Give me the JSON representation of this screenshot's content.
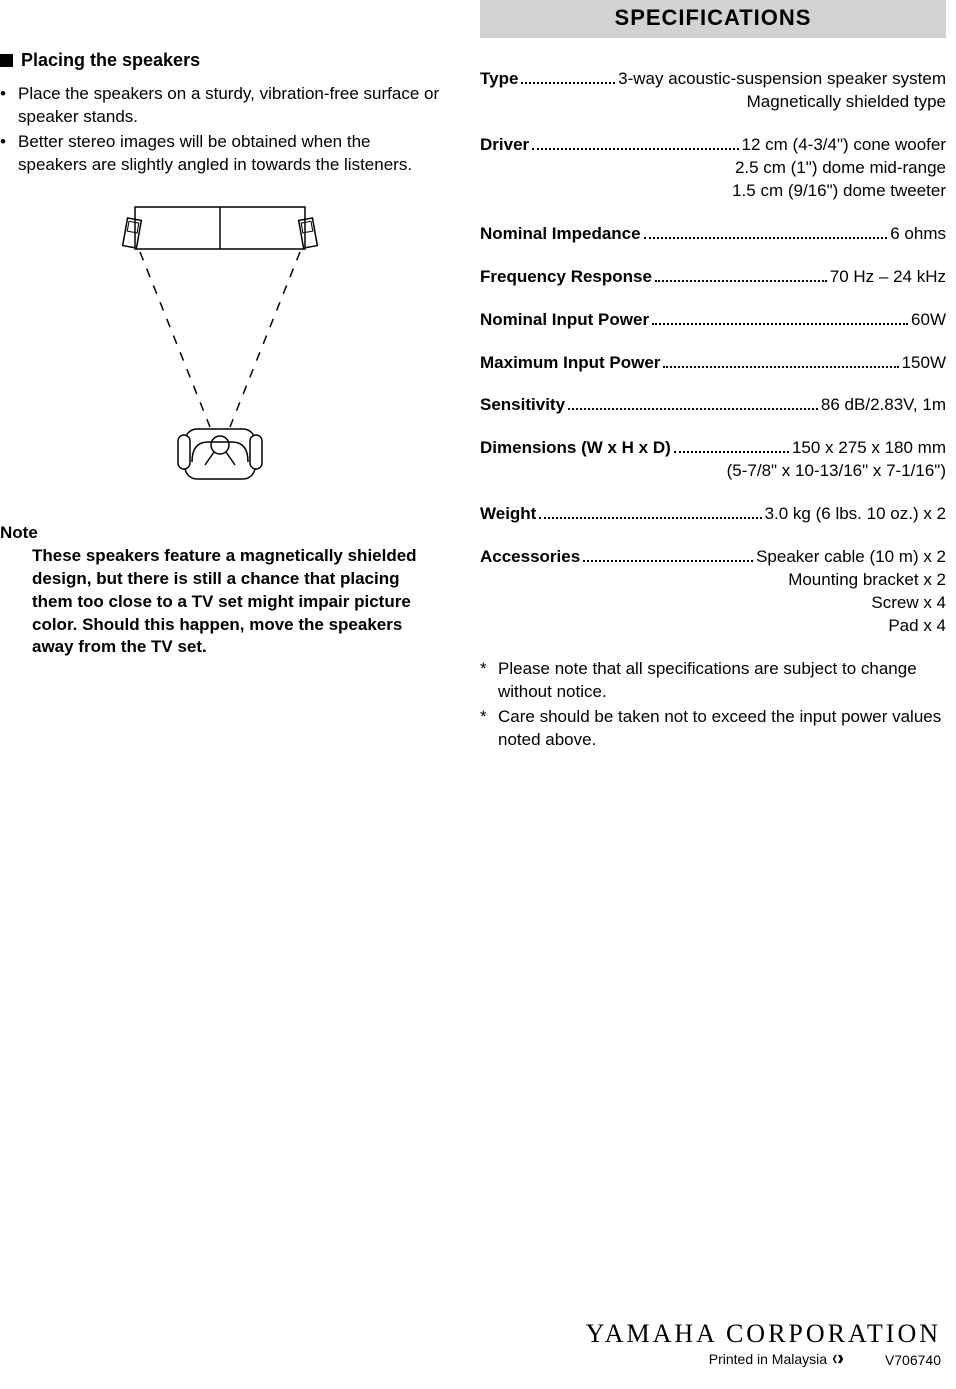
{
  "left": {
    "heading": "Placing the speakers",
    "bullets": [
      "Place the speakers on a sturdy, vibration-free surface or speaker stands.",
      "Better stereo images will be obtained when the speakers are slightly angled in towards the listeners."
    ],
    "note_label": "Note",
    "note_body": "These speakers feature a magnetically shielded design, but there is still a chance that placing them too close to a TV set might impair picture color.  Should this happen, move the speakers away from the TV set."
  },
  "right": {
    "header": "SPECIFICATIONS",
    "specs": [
      {
        "label": "Type",
        "value": "3-way acoustic-suspension speaker system",
        "extra": [
          "Magnetically shielded type"
        ]
      },
      {
        "label": "Driver",
        "value": "12 cm (4-3/4\") cone woofer",
        "extra": [
          "2.5 cm (1\") dome mid-range",
          "1.5 cm (9/16\") dome tweeter"
        ]
      },
      {
        "label": "Nominal Impedance",
        "value": "6 ohms",
        "extra": []
      },
      {
        "label": "Frequency Response",
        "value": "70 Hz – 24 kHz",
        "extra": []
      },
      {
        "label": "Nominal Input Power",
        "value": "60W",
        "extra": []
      },
      {
        "label": "Maximum Input Power",
        "value": "150W",
        "extra": []
      },
      {
        "label": "Sensitivity",
        "value": "86 dB/2.83V, 1m",
        "extra": []
      },
      {
        "label": "Dimensions (W x H x D)",
        "value": "150 x 275 x 180 mm",
        "extra": [
          "(5-7/8\" x 10-13/16\" x 7-1/16\")"
        ]
      },
      {
        "label": "Weight",
        "value": "3.0 kg (6 lbs. 10 oz.) x 2",
        "extra": []
      },
      {
        "label": "Accessories",
        "value": "Speaker cable (10 m) x 2",
        "extra": [
          "Mounting bracket x 2",
          "Screw x 4",
          "Pad x 4"
        ]
      }
    ],
    "footnotes": [
      "Please note that all specifications are subject to change without notice.",
      "Care should be taken not to exceed the input power values noted above."
    ]
  },
  "footer": {
    "logo": "YAMAHA CORPORATION",
    "printed": "Printed in Malaysia",
    "code": "V706740"
  },
  "colors": {
    "header_bg": "#d2d2d2",
    "text": "#000000",
    "bg": "#ffffff"
  }
}
